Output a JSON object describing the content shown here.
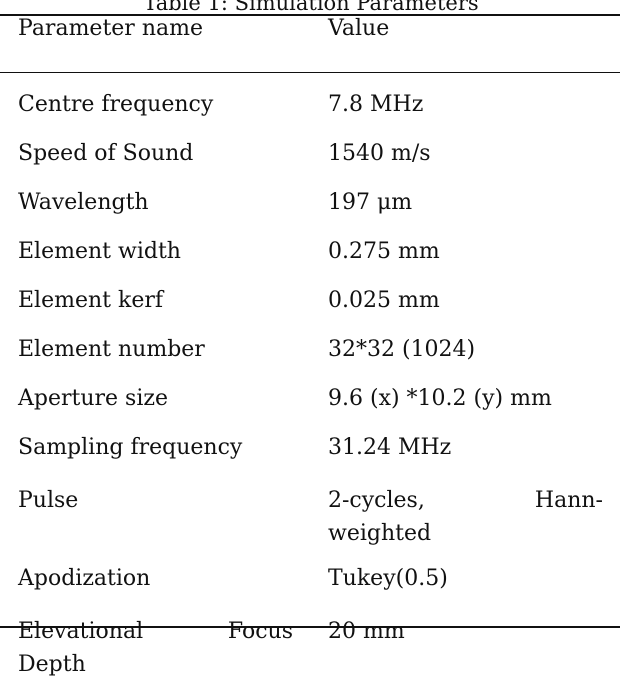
{
  "table": {
    "caption": "Table 1: Simulation Parameters",
    "headers": {
      "name": "Parameter name",
      "value": "Value"
    },
    "rows": [
      {
        "name": "Centre frequency",
        "value": "7.8 MHz"
      },
      {
        "name": "Speed of Sound",
        "value": "1540 m/s"
      },
      {
        "name": "Wavelength",
        "value": "197 μm"
      },
      {
        "name": "Element width",
        "value": "0.275 mm"
      },
      {
        "name": "Element kerf",
        "value": "0.025 mm"
      },
      {
        "name": "Element number",
        "value": "32*32 (1024)"
      },
      {
        "name": "Aperture size",
        "value": "9.6 (x) *10.2 (y) mm"
      },
      {
        "name": "Sampling frequency",
        "value": "31.24 MHz"
      },
      {
        "name": "Pulse",
        "value_line1_a": "2-cycles,",
        "value_line1_b": "Hann-",
        "value_line2": "weighted"
      },
      {
        "name": "Apodization",
        "value": "Tukey(0.5)"
      },
      {
        "name_line1_a": "Elevational",
        "name_line1_b": "Focus",
        "name_line2": "Depth",
        "value": "20 mm"
      }
    ]
  }
}
